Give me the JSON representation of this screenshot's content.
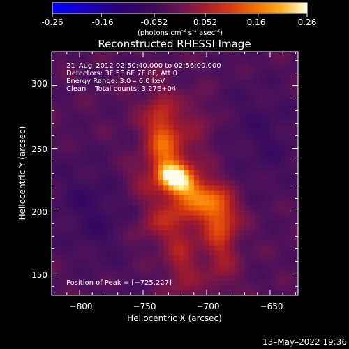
{
  "colors": {
    "background": "#000000",
    "foreground": "#ffffff",
    "colormap": [
      "#0000ff",
      "#2200a0",
      "#360050",
      "#5a0f5a",
      "#8c1a6e",
      "#b8202a",
      "#d83a10",
      "#f26a00",
      "#ff9a10",
      "#ffcc30",
      "#ffffff"
    ]
  },
  "colorbar": {
    "ticks": [
      "-0.26",
      "-0.16",
      "-0.052",
      "0.052",
      "0.16",
      "0.26"
    ],
    "tick_values": [
      -0.26,
      -0.16,
      -0.052,
      0.052,
      0.16,
      0.26
    ],
    "range": [
      -0.26,
      0.26
    ],
    "units_prefix": "(photons cm",
    "units_exp1": "-2",
    "units_mid": " s",
    "units_exp2": "-1",
    "units_mid2": " asec",
    "units_exp3": "-2",
    "units_suffix": ")"
  },
  "chart_data": {
    "type": "heatmap",
    "title": "Reconstructed RHESSI Image",
    "xlabel": "Heliocentric X (arcsec)",
    "ylabel": "Heliocentric Y (arcsec)",
    "xlim": [
      -822,
      -628
    ],
    "ylim": [
      133,
      327
    ],
    "xticks": [
      -800,
      -750,
      -700,
      -650
    ],
    "yticks": [
      150,
      200,
      250,
      300
    ],
    "xtick_labels": [
      "−800",
      "−750",
      "−700",
      "−650"
    ],
    "ytick_labels": [
      "150",
      "200",
      "250",
      "300"
    ],
    "value_range": [
      -0.26,
      0.26
    ],
    "peak": [
      -725,
      227
    ],
    "annotations": [
      "21–Aug–2012 02:50:40.000 to 02:56:00.000",
      "Detectors: 3F 5F 6F 7F 8F, Att 0",
      "Energy Range: 3.0 – 6.0 keV",
      "Clean    Total counts: 3.27E+04"
    ],
    "peak_label": "Position of Peak = [−725,227]"
  },
  "footer": {
    "timestamp": "13–May–2022 19:36"
  }
}
